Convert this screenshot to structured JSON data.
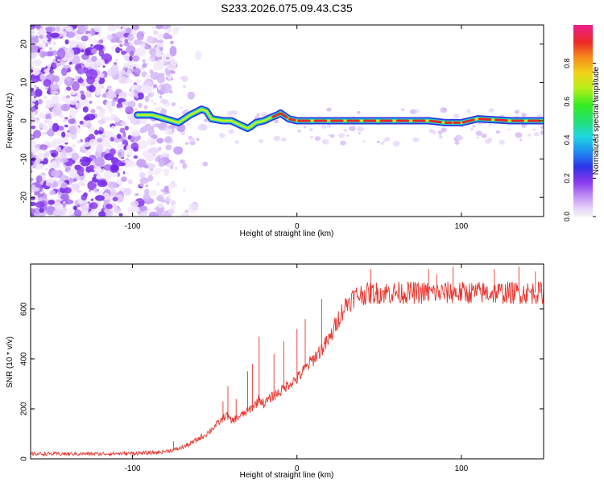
{
  "title": "S233.2026.075.09.43.C35",
  "colors": {
    "snr_line": "#e8352e",
    "noise_scatter": "#8a3cf0",
    "track_outer": "#2b35e8",
    "track_mid": "#20d8b0",
    "track_core": "#e8262e",
    "frame": "#000000"
  },
  "chart_data": [
    {
      "type": "heatmap",
      "panel": "top",
      "xlabel": "Height of straight line (km)",
      "ylabel": "Frequency (Hz)",
      "xlim": [
        -162,
        150
      ],
      "ylim": [
        -25,
        25
      ],
      "xticks": [
        -100,
        0,
        100
      ],
      "xtick_labels": [
        "-100",
        "0",
        "100"
      ],
      "yticks": [
        -20,
        -10,
        0,
        10,
        20
      ],
      "ytick_labels": [
        "-20",
        "-10",
        "0",
        "10",
        "20"
      ],
      "noise_region_x": [
        -162,
        -75
      ],
      "ridge": {
        "x": [
          -97,
          -88,
          -80,
          -72,
          -65,
          -58,
          -55,
          -52,
          -45,
          -40,
          -35,
          -30,
          -28,
          -25,
          -20,
          -15,
          -12,
          -10,
          -5,
          0,
          10,
          20,
          40,
          60,
          80,
          90,
          95,
          100,
          110,
          130,
          150
        ],
        "y": [
          1.5,
          1.5,
          0.5,
          -0.5,
          1.5,
          3.0,
          2.5,
          0.5,
          0.0,
          0.0,
          -1.0,
          -2.0,
          -1.5,
          -0.5,
          0.0,
          1.0,
          1.5,
          2.0,
          0.5,
          0.0,
          0.0,
          0.0,
          0.0,
          0.0,
          0.0,
          -0.5,
          -0.5,
          -0.5,
          0.5,
          0.0,
          0.0
        ]
      },
      "colorbar": {
        "label": "Normalized spectral amplitude",
        "range": [
          0.0,
          1.0
        ],
        "ticks": [
          0.0,
          0.2,
          0.4,
          0.6,
          0.8
        ],
        "tick_labels": [
          "0.0",
          "0.2",
          "0.4",
          "0.6",
          "0.8"
        ]
      }
    },
    {
      "type": "line",
      "panel": "bottom",
      "xlabel": "Height of straight line (km)",
      "ylabel": "SNR (10 * v/v)",
      "xlim": [
        -162,
        150
      ],
      "ylim": [
        0,
        780
      ],
      "xticks": [
        -100,
        0,
        100
      ],
      "xtick_labels": [
        "-100",
        "0",
        "100"
      ],
      "yticks": [
        0,
        200,
        400,
        600
      ],
      "ytick_labels": [
        "0",
        "200",
        "400",
        "600"
      ],
      "series": [
        {
          "name": "SNR",
          "x": [
            -162,
            -140,
            -120,
            -100,
            -85,
            -75,
            -70,
            -65,
            -60,
            -55,
            -50,
            -45,
            -43,
            -40,
            -35,
            -30,
            -25,
            -23,
            -20,
            -15,
            -10,
            -5,
            0,
            5,
            10,
            15,
            20,
            25,
            30,
            35,
            40,
            50,
            60,
            70,
            80,
            90,
            100,
            110,
            120,
            130,
            140,
            150
          ],
          "y": [
            20,
            20,
            20,
            22,
            25,
            35,
            45,
            60,
            80,
            100,
            130,
            160,
            180,
            150,
            170,
            190,
            220,
            240,
            220,
            250,
            270,
            300,
            320,
            360,
            400,
            440,
            480,
            560,
            620,
            650,
            660,
            665,
            665,
            665,
            665,
            665,
            665,
            665,
            665,
            665,
            665,
            665
          ]
        }
      ],
      "spikes": {
        "x": [
          -75,
          -45,
          -42,
          -37,
          -30,
          -27,
          -23,
          -14,
          -8,
          0,
          5,
          15,
          45,
          80,
          85,
          95,
          120,
          135,
          145
        ],
        "y": [
          70,
          230,
          290,
          240,
          350,
          380,
          490,
          420,
          470,
          520,
          560,
          640,
          760,
          760,
          740,
          770,
          760,
          770,
          750
        ]
      }
    }
  ]
}
